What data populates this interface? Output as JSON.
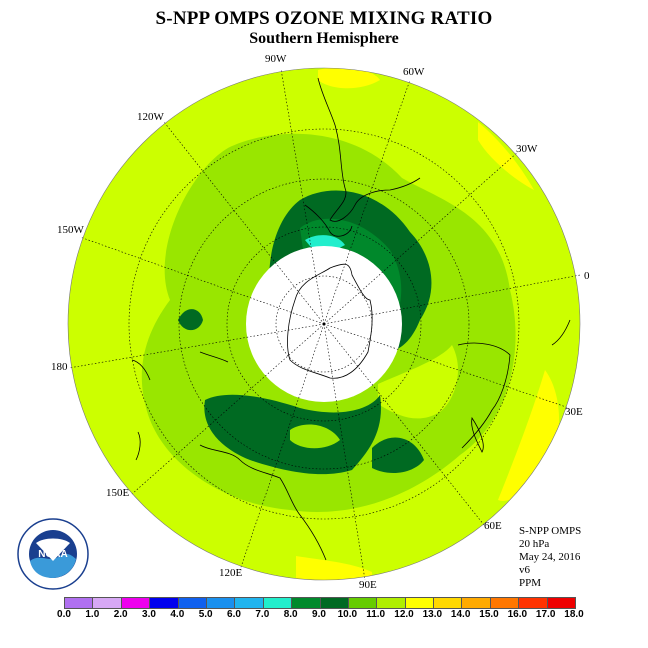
{
  "header": {
    "title": "S-NPP OMPS OZONE MIXING RATIO",
    "subtitle": "Southern Hemisphere"
  },
  "map": {
    "longitude_labels": [
      "90W",
      "60W",
      "30W",
      "0",
      "30E",
      "60E",
      "90E",
      "120E",
      "150E",
      "180",
      "150W",
      "120W"
    ],
    "colors": {
      "outer": "#ccff00",
      "band_10_11": "#99e600",
      "band_9_10": "#00882b",
      "band_8_9": "#006a22",
      "band_7_8": "#22eecc",
      "band_12_13": "#ffff00",
      "no_data": "#ffffff"
    }
  },
  "info": {
    "instrument": "S-NPP OMPS",
    "level": "20 hPa",
    "date": "May 24, 2016",
    "version": "v6",
    "units": "PPM"
  },
  "colorbar": {
    "ticks": [
      "0.0",
      "1.0",
      "2.0",
      "3.0",
      "4.0",
      "5.0",
      "6.0",
      "7.0",
      "8.0",
      "9.0",
      "10.0",
      "11.0",
      "12.0",
      "13.0",
      "14.0",
      "15.0",
      "16.0",
      "17.0",
      "18.0"
    ],
    "colors": [
      "#b070f0",
      "#d7a8f5",
      "#ee00ee",
      "#0000ee",
      "#1060ee",
      "#1a90ee",
      "#20b4ee",
      "#22eecc",
      "#008a2c",
      "#006a22",
      "#66cc00",
      "#b0ee00",
      "#ffff00",
      "#ffd800",
      "#ffaa00",
      "#ff7700",
      "#ff3300",
      "#ee0000",
      "#8b5a3c"
    ]
  },
  "logo": {
    "name": "NOAA",
    "ring_text": "NATIONAL OCEANIC AND ATMOSPHERIC ADMINISTRATION · U.S. DEPARTMENT OF COMMERCE"
  }
}
